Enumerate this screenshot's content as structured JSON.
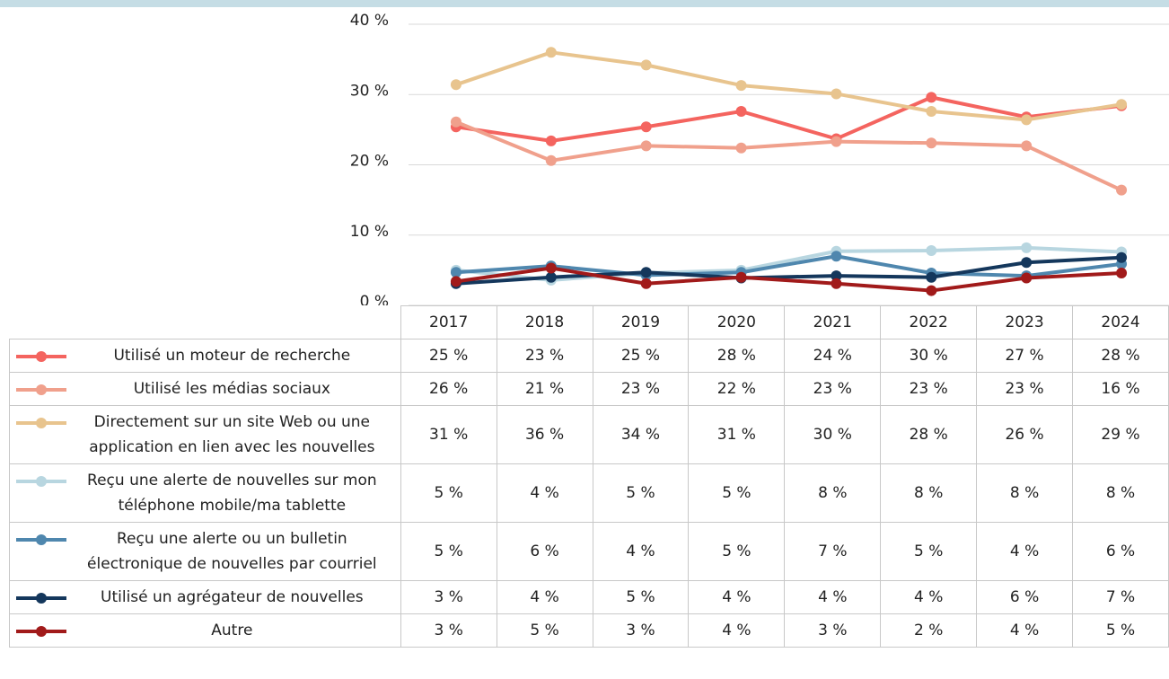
{
  "chart_data": {
    "type": "line",
    "categories": [
      "2017",
      "2018",
      "2019",
      "2020",
      "2021",
      "2022",
      "2023",
      "2024"
    ],
    "ylim": [
      0,
      40
    ],
    "yticks": [
      {
        "value": 0,
        "label": "0 %"
      },
      {
        "value": 10,
        "label": "10 %"
      },
      {
        "value": 20,
        "label": "20 %"
      },
      {
        "value": 30,
        "label": "30 %"
      },
      {
        "value": 40,
        "label": "40 %"
      }
    ],
    "grid": true,
    "series": [
      {
        "name": "Utilisé un moteur de recherche",
        "color": "#f4645f",
        "values": [
          25.4,
          23.4,
          25.4,
          27.6,
          23.7,
          29.6,
          26.8,
          28.4
        ],
        "value_labels": [
          "25 %",
          "23 %",
          "25 %",
          "28 %",
          "24 %",
          "30 %",
          "27 %",
          "28 %"
        ]
      },
      {
        "name": "Utilisé les médias sociaux",
        "color": "#f0a08c",
        "values": [
          26.1,
          20.6,
          22.7,
          22.4,
          23.3,
          23.1,
          22.7,
          16.4
        ],
        "value_labels": [
          "26 %",
          "21 %",
          "23 %",
          "22 %",
          "23 %",
          "23 %",
          "23 %",
          "16 %"
        ]
      },
      {
        "name": "Directement sur un site Web ou une application en lien avec les nouvelles",
        "color": "#e8c48e",
        "values": [
          31.4,
          36.0,
          34.2,
          31.3,
          30.1,
          27.6,
          26.4,
          28.6
        ],
        "value_labels": [
          "31 %",
          "36 %",
          "34 %",
          "31 %",
          "30 %",
          "28 %",
          "26 %",
          "29 %"
        ]
      },
      {
        "name": "Reçu une alerte de nouvelles sur mon téléphone mobile/ma tablette",
        "color": "#b8d6e0",
        "values": [
          5.0,
          3.6,
          4.6,
          5.0,
          7.7,
          7.8,
          8.2,
          7.6
        ],
        "value_labels": [
          "5 %",
          "4 %",
          "5 %",
          "5 %",
          "8 %",
          "8 %",
          "8 %",
          "8 %"
        ]
      },
      {
        "name": "Reçu une alerte ou un bulletin électronique de nouvelles par courriel",
        "color": "#4f87ae",
        "values": [
          4.7,
          5.6,
          4.3,
          4.7,
          7.0,
          4.6,
          4.2,
          5.9
        ],
        "value_labels": [
          "5 %",
          "6 %",
          "4 %",
          "5 %",
          "7 %",
          "5 %",
          "4 %",
          "6 %"
        ]
      },
      {
        "name": "Utilisé un agrégateur de nouvelles",
        "color": "#14375c",
        "values": [
          3.1,
          4.0,
          4.7,
          3.9,
          4.2,
          4.0,
          6.1,
          6.8
        ],
        "value_labels": [
          "3 %",
          "4 %",
          "5 %",
          "4 %",
          "4 %",
          "4 %",
          "6 %",
          "7 %"
        ]
      },
      {
        "name": "Autre",
        "color": "#a11a1a",
        "values": [
          3.4,
          5.3,
          3.1,
          4.0,
          3.1,
          2.1,
          3.9,
          4.6
        ],
        "value_labels": [
          "3 %",
          "5 %",
          "3 %",
          "4 %",
          "3 %",
          "2 %",
          "4 %",
          "5 %"
        ]
      }
    ]
  }
}
